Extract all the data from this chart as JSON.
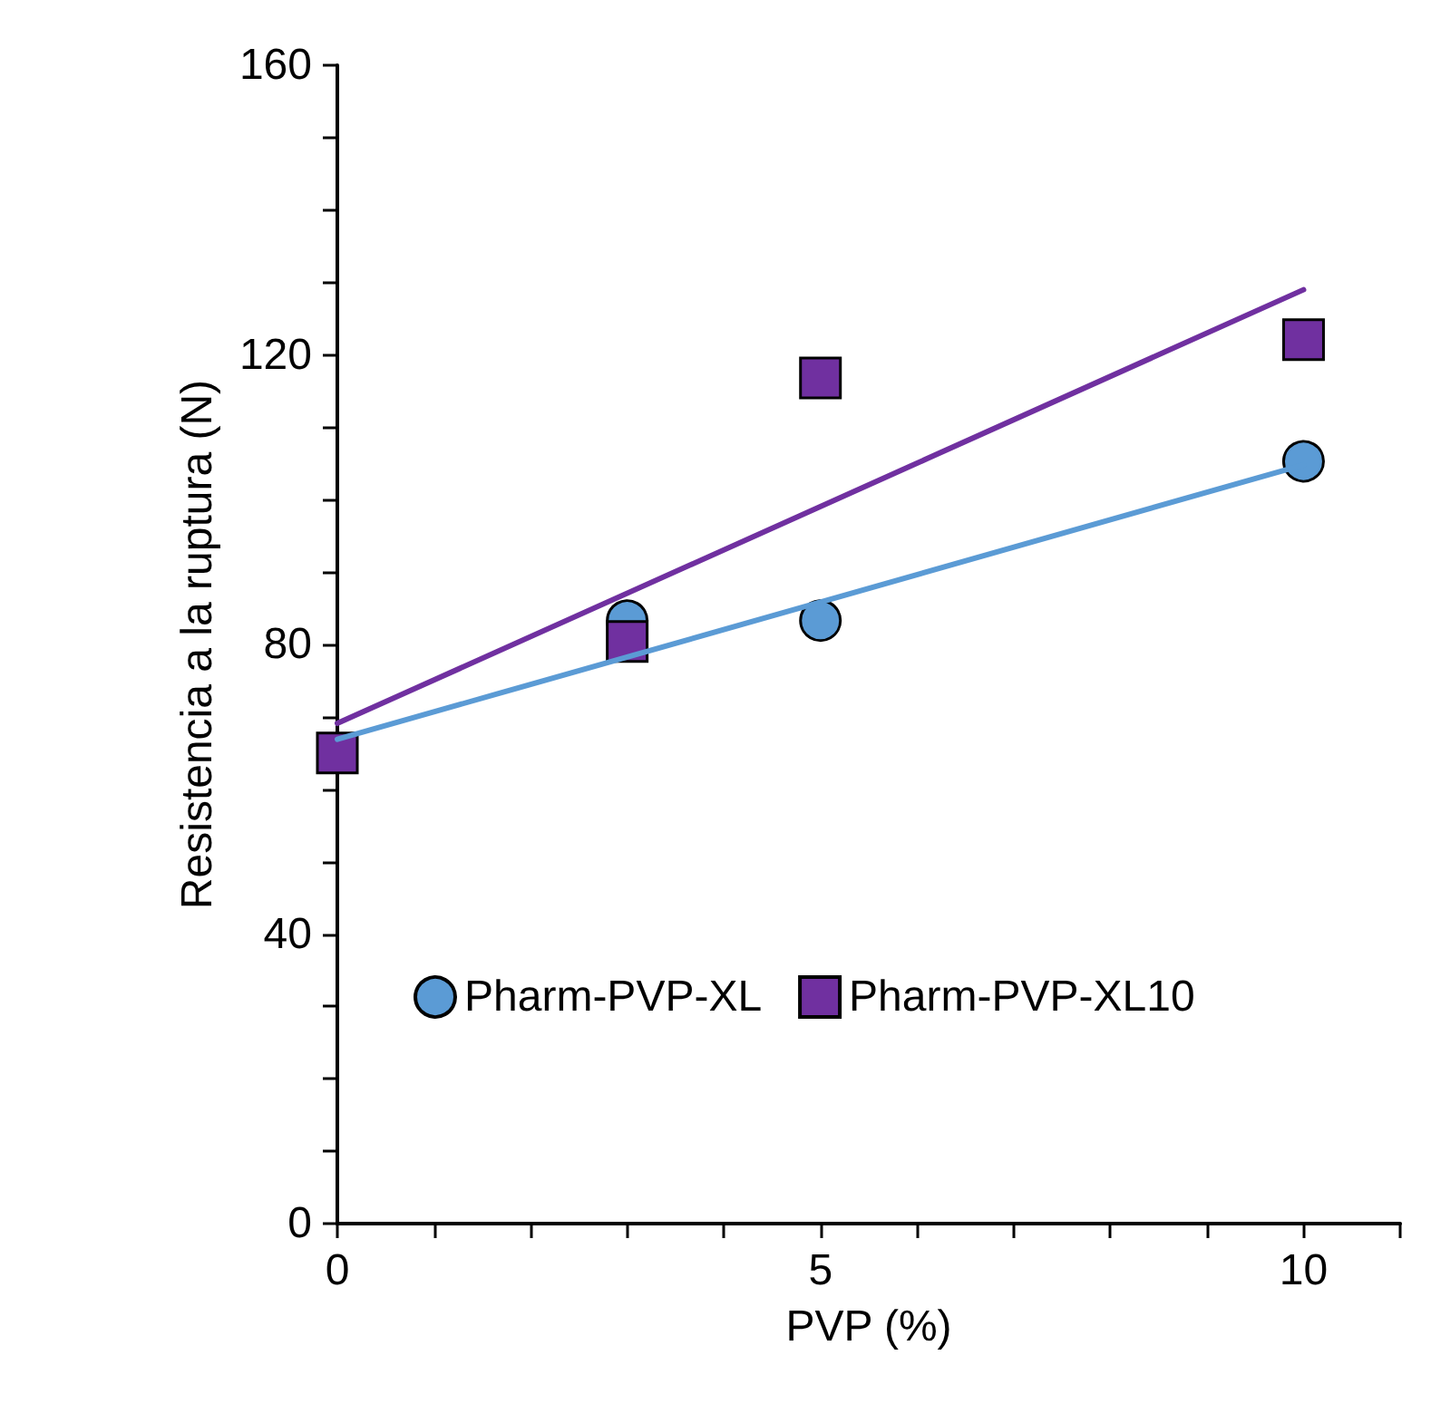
{
  "chart_data": {
    "type": "scatter",
    "xlabel": "PVP (%)",
    "ylabel": "Resistencia a la ruptura (N)",
    "xlim": [
      0,
      11
    ],
    "xticks": [
      0,
      {
        "value": 1,
        "label": null
      },
      {
        "value": 2,
        "label": null
      },
      {
        "value": 3,
        "label": null
      },
      {
        "value": 4,
        "label": null
      },
      5,
      {
        "value": 6,
        "label": null
      },
      {
        "value": 7,
        "label": null
      },
      {
        "value": 8,
        "label": null
      },
      {
        "value": 9,
        "label": null
      },
      10,
      {
        "value": 11,
        "label": null
      }
    ],
    "ylim": [
      0,
      160
    ],
    "yticks": [
      0,
      {
        "value": 10,
        "label": null
      },
      {
        "value": 20,
        "label": null
      },
      {
        "value": 30,
        "label": null
      },
      40,
      {
        "value": 50,
        "label": null
      },
      {
        "value": 60,
        "label": null
      },
      {
        "value": 70,
        "label": null
      },
      80,
      {
        "value": 90,
        "label": null
      },
      {
        "value": 100,
        "label": null
      },
      {
        "value": 110,
        "label": null
      },
      120,
      {
        "value": 130,
        "label": null
      },
      {
        "value": 140,
        "label": null
      },
      {
        "value": 150,
        "label": null
      },
      160
    ],
    "grid": false,
    "legend": "bottom",
    "series": [
      {
        "type": "line",
        "color": "#5b9bd5",
        "x": [
          0,
          10
        ],
        "values": [
          66.9,
          104.8
        ]
      },
      {
        "type": "line",
        "color": "#7030a0",
        "x": [
          0,
          10
        ],
        "values": [
          69.1,
          129
        ]
      },
      {
        "name": "Pharm-PVP-XL",
        "color": "#5b9bd5",
        "marker": "circle",
        "x": [
          3,
          5,
          10
        ],
        "values": [
          83.3,
          83.3,
          105.3
        ]
      },
      {
        "name": "Pharm-PVP-XL10",
        "color": "#7030a0",
        "marker": "square",
        "x": [
          0,
          3,
          5,
          10
        ],
        "values": [
          65,
          80.4,
          116.8,
          122.1
        ]
      }
    ]
  }
}
